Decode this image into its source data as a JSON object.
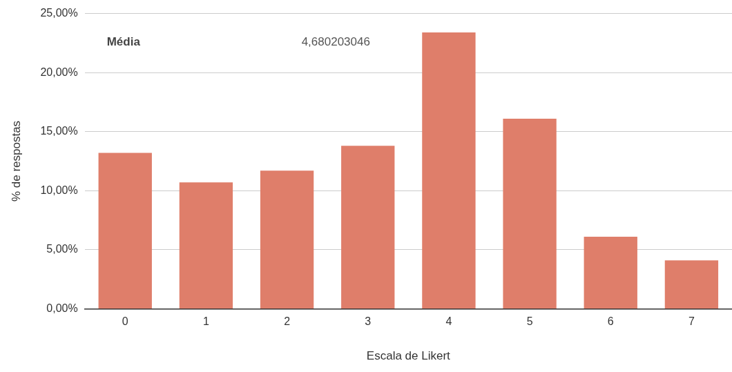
{
  "chart_data": {
    "type": "bar",
    "xlabel": "Escala de Likert",
    "ylabel": "% de respostas",
    "categories": [
      "0",
      "1",
      "2",
      "3",
      "4",
      "5",
      "6",
      "7"
    ],
    "values": [
      13.2,
      10.7,
      11.7,
      13.8,
      23.4,
      16.1,
      6.1,
      4.1
    ],
    "color": "#df7e6a",
    "ylim": [
      0,
      25
    ],
    "yticks": [
      {
        "value": 0,
        "label": "0,00%"
      },
      {
        "value": 5,
        "label": "5,00%"
      },
      {
        "value": 10,
        "label": "10,00%"
      },
      {
        "value": 15,
        "label": "15,00%"
      },
      {
        "value": 20,
        "label": "20,00%"
      },
      {
        "value": 25,
        "label": "25,00%"
      }
    ],
    "grid": "y",
    "legend": false,
    "annotations": [
      "Média",
      "4,680203046"
    ]
  }
}
